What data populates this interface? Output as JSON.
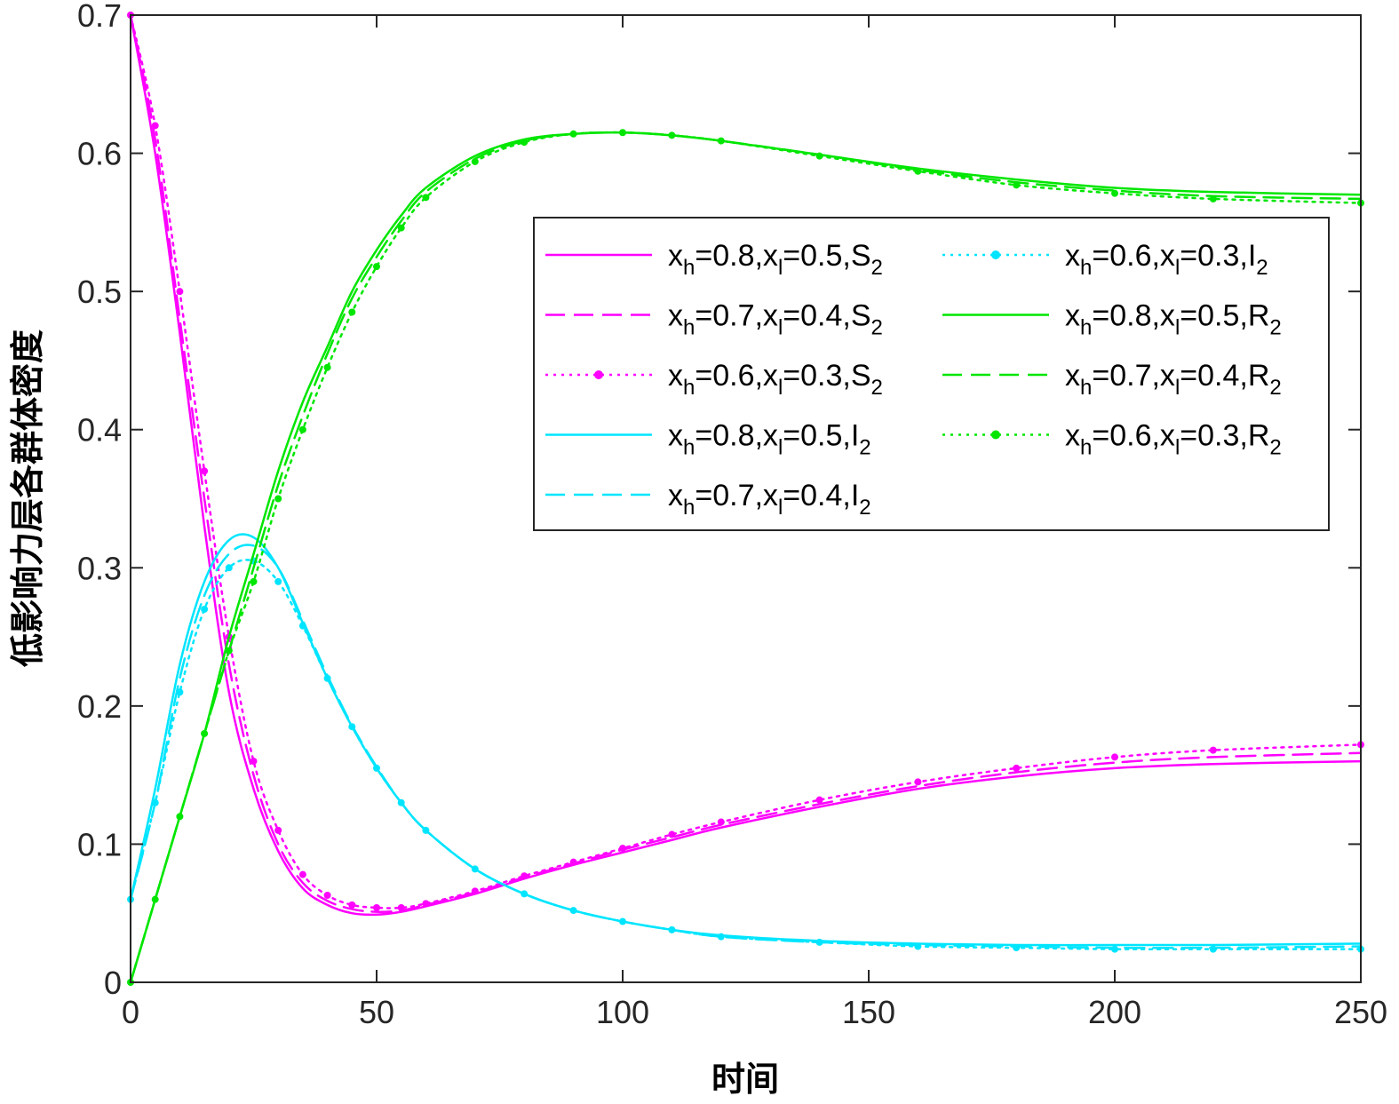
{
  "chart_data": {
    "type": "line",
    "title": "",
    "xlabel": "时间",
    "ylabel": "低影响力层各群体密度",
    "xlim": [
      0,
      250
    ],
    "ylim": [
      0,
      0.7
    ],
    "xticks": [
      0,
      50,
      100,
      150,
      200,
      250
    ],
    "xtick_labels": [
      "0",
      "50",
      "100",
      "150",
      "200",
      "250"
    ],
    "yticks": [
      0,
      0.1,
      0.2,
      0.3,
      0.4,
      0.5,
      0.6,
      0.7
    ],
    "ytick_labels": [
      "0",
      "0.1",
      "0.2",
      "0.3",
      "0.4",
      "0.5",
      "0.6",
      "0.7"
    ],
    "grid": false,
    "legend_position": "center-right",
    "x": [
      0,
      5,
      10,
      15,
      20,
      25,
      30,
      35,
      40,
      45,
      50,
      55,
      60,
      70,
      80,
      90,
      100,
      110,
      120,
      140,
      160,
      180,
      200,
      220,
      250
    ],
    "series": [
      {
        "name": "xh=0.8,xl=0.5,S2",
        "label": {
          "pre": "x",
          "sub1": "h",
          "mid": "=0.8,x",
          "sub2": "l",
          "post": "=0.5,S",
          "sub3": "2"
        },
        "color": "#ff00ff",
        "style": "solid",
        "marker": false,
        "values": [
          0.7,
          0.6,
          0.47,
          0.33,
          0.21,
          0.14,
          0.095,
          0.068,
          0.056,
          0.05,
          0.049,
          0.051,
          0.055,
          0.064,
          0.075,
          0.085,
          0.094,
          0.103,
          0.112,
          0.127,
          0.14,
          0.149,
          0.155,
          0.158,
          0.16
        ]
      },
      {
        "name": "xh=0.7,xl=0.4,S2",
        "label": {
          "pre": "x",
          "sub1": "h",
          "mid": "=0.7,x",
          "sub2": "l",
          "post": "=0.4,S",
          "sub3": "2"
        },
        "color": "#ff00ff",
        "style": "dashed",
        "marker": false,
        "values": [
          0.7,
          0.61,
          0.48,
          0.35,
          0.23,
          0.15,
          0.1,
          0.072,
          0.059,
          0.053,
          0.051,
          0.052,
          0.056,
          0.065,
          0.076,
          0.086,
          0.096,
          0.105,
          0.114,
          0.129,
          0.142,
          0.152,
          0.159,
          0.163,
          0.166
        ]
      },
      {
        "name": "xh=0.6,xl=0.3,S2",
        "label": {
          "pre": "x",
          "sub1": "h",
          "mid": "=0.6,x",
          "sub2": "l",
          "post": "=0.3,S",
          "sub3": "2"
        },
        "color": "#ff00ff",
        "style": "dotted",
        "marker": true,
        "values": [
          0.7,
          0.62,
          0.5,
          0.37,
          0.25,
          0.16,
          0.11,
          0.078,
          0.063,
          0.056,
          0.054,
          0.054,
          0.057,
          0.066,
          0.077,
          0.087,
          0.097,
          0.107,
          0.116,
          0.132,
          0.145,
          0.155,
          0.163,
          0.168,
          0.172
        ]
      },
      {
        "name": "xh=0.8,xl=0.5,I2",
        "label": {
          "pre": "x",
          "sub1": "h",
          "mid": "=0.8,x",
          "sub2": "l",
          "post": "=0.5,I",
          "sub3": "2"
        },
        "color": "#00e5ff",
        "style": "solid",
        "marker": false,
        "values": [
          0.06,
          0.14,
          0.23,
          0.29,
          0.32,
          0.322,
          0.3,
          0.26,
          0.22,
          0.185,
          0.155,
          0.13,
          0.11,
          0.082,
          0.064,
          0.052,
          0.044,
          0.038,
          0.034,
          0.03,
          0.028,
          0.027,
          0.027,
          0.027,
          0.028
        ]
      },
      {
        "name": "xh=0.7,xl=0.4,I2",
        "label": {
          "pre": "x",
          "sub1": "h",
          "mid": "=0.7,x",
          "sub2": "l",
          "post": "=0.4,I",
          "sub3": "2"
        },
        "color": "#00e5ff",
        "style": "dashed",
        "marker": false,
        "values": [
          0.06,
          0.13,
          0.22,
          0.28,
          0.31,
          0.316,
          0.3,
          0.262,
          0.222,
          0.186,
          0.156,
          0.13,
          0.11,
          0.082,
          0.064,
          0.052,
          0.044,
          0.038,
          0.033,
          0.029,
          0.027,
          0.026,
          0.025,
          0.025,
          0.026
        ]
      },
      {
        "name": "xh=0.6,xl=0.3,I2",
        "label": {
          "pre": "x",
          "sub1": "h",
          "mid": "=0.6,x",
          "sub2": "l",
          "post": "=0.3,I",
          "sub3": "2"
        },
        "color": "#00e5ff",
        "style": "dotted",
        "marker": true,
        "values": [
          0.06,
          0.13,
          0.21,
          0.27,
          0.3,
          0.305,
          0.29,
          0.258,
          0.22,
          0.185,
          0.155,
          0.13,
          0.11,
          0.082,
          0.064,
          0.052,
          0.044,
          0.038,
          0.033,
          0.029,
          0.026,
          0.025,
          0.024,
          0.024,
          0.024
        ]
      },
      {
        "name": "xh=0.8,xl=0.5,R2",
        "label": {
          "pre": "x",
          "sub1": "h",
          "mid": "=0.8,x",
          "sub2": "l",
          "post": "=0.5,R",
          "sub3": "2"
        },
        "color": "#00e600",
        "style": "solid",
        "marker": false,
        "values": [
          0.0,
          0.06,
          0.12,
          0.18,
          0.25,
          0.31,
          0.37,
          0.42,
          0.46,
          0.5,
          0.53,
          0.555,
          0.575,
          0.598,
          0.61,
          0.614,
          0.615,
          0.613,
          0.609,
          0.599,
          0.589,
          0.581,
          0.575,
          0.572,
          0.57
        ]
      },
      {
        "name": "xh=0.7,xl=0.4,R2",
        "label": {
          "pre": "x",
          "sub1": "h",
          "mid": "=0.7,x",
          "sub2": "l",
          "post": "=0.4,R",
          "sub3": "2"
        },
        "color": "#00e600",
        "style": "dashed",
        "marker": false,
        "values": [
          0.0,
          0.06,
          0.12,
          0.18,
          0.24,
          0.3,
          0.36,
          0.41,
          0.455,
          0.495,
          0.525,
          0.551,
          0.572,
          0.596,
          0.609,
          0.614,
          0.615,
          0.613,
          0.609,
          0.599,
          0.588,
          0.579,
          0.573,
          0.569,
          0.567
        ]
      },
      {
        "name": "xh=0.6,xl=0.3,R2",
        "label": {
          "pre": "x",
          "sub1": "h",
          "mid": "=0.6,x",
          "sub2": "l",
          "post": "=0.3,R",
          "sub3": "2"
        },
        "color": "#00e600",
        "style": "dotted",
        "marker": true,
        "values": [
          0.0,
          0.06,
          0.12,
          0.18,
          0.24,
          0.29,
          0.35,
          0.4,
          0.445,
          0.485,
          0.518,
          0.546,
          0.568,
          0.594,
          0.608,
          0.614,
          0.615,
          0.613,
          0.609,
          0.598,
          0.587,
          0.577,
          0.571,
          0.567,
          0.564
        ]
      }
    ]
  }
}
